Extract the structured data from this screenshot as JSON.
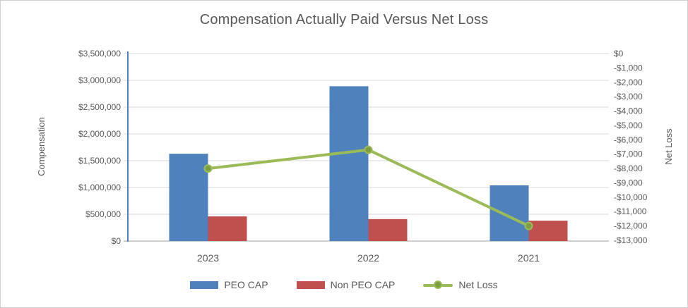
{
  "chart_data": {
    "type": "bar",
    "subtype": "combo-bar-line",
    "title": "Compensation Actually Paid Versus Net Loss",
    "categories": [
      "2023",
      "2022",
      "2021"
    ],
    "series": [
      {
        "name": "PEO CAP",
        "type": "bar",
        "axis": "left",
        "color": "#4F81BD",
        "values": [
          1630000,
          2890000,
          1040000
        ]
      },
      {
        "name": "Non PEO CAP",
        "type": "bar",
        "axis": "left",
        "color": "#C0504D",
        "values": [
          460000,
          410000,
          380000
        ]
      },
      {
        "name": "Net Loss",
        "type": "line",
        "axis": "right",
        "color": "#9BBB59",
        "marker_fill": "#7E9E43",
        "values": [
          -8000,
          -6700,
          -12000
        ]
      }
    ],
    "left_axis": {
      "label": "Compensation",
      "min": 0,
      "max": 3500000,
      "step": 500000,
      "tick_labels": [
        "$3,500,000",
        "$3,000,000",
        "$2,500,000",
        "$2,000,000",
        "$1,500,000",
        "$1,000,000",
        "$500,000",
        "$0"
      ],
      "tick_values": [
        3500000,
        3000000,
        2500000,
        2000000,
        1500000,
        1000000,
        500000,
        0
      ]
    },
    "right_axis": {
      "label": "Net Loss",
      "min": -13000,
      "max": 0,
      "step": -1000,
      "tick_labels": [
        "$0",
        "-$1,000",
        "-$2,000",
        "-$3,000",
        "-$4,000",
        "-$5,000",
        "-$6,000",
        "-$7,000",
        "-$8,000",
        "-$9,000",
        "-$10,000",
        "-$11,000",
        "-$12,000",
        "-$13,000"
      ]
    },
    "legend_position": "bottom",
    "grid": true,
    "colors": {
      "text": "#595959",
      "gridline": "#D9D9D9",
      "x_axis_line": "#BFBFBF",
      "y_axis_line": "#4F81BD"
    }
  }
}
